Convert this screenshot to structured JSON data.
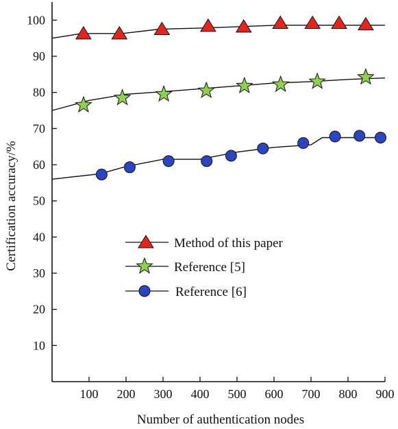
{
  "chart_data": {
    "type": "line",
    "xlabel": "Number of authentication nodes",
    "ylabel": "Certification accuracy/%",
    "xlim": [
      0,
      900
    ],
    "ylim": [
      0,
      105
    ],
    "xticks": [
      100,
      200,
      300,
      400,
      500,
      600,
      700,
      800,
      900
    ],
    "yticks": [
      10,
      20,
      30,
      40,
      50,
      60,
      70,
      80,
      90,
      100
    ],
    "grid": false,
    "legend_position": "center",
    "series": [
      {
        "name": "Method of this paper",
        "marker": "triangle",
        "color": "#e3261d",
        "line": [
          [
            0,
            95
          ],
          [
            80,
            96.3
          ],
          [
            190,
            96.3
          ],
          [
            290,
            97.5
          ],
          [
            400,
            97.8
          ],
          [
            510,
            98.2
          ],
          [
            610,
            98.6
          ],
          [
            700,
            98.6
          ],
          [
            780,
            98.6
          ],
          [
            900,
            98.6
          ]
        ],
        "points": [
          [
            85,
            96.3
          ],
          [
            182,
            96.3
          ],
          [
            297,
            97.5
          ],
          [
            422,
            98.4
          ],
          [
            518,
            98.2
          ],
          [
            617,
            99.2
          ],
          [
            704,
            99.2
          ],
          [
            776,
            99.2
          ],
          [
            848,
            98.8
          ]
        ]
      },
      {
        "name": "Reference [5]",
        "marker": "star",
        "color": "#8fd14f",
        "line": [
          [
            0,
            75
          ],
          [
            100,
            77.8
          ],
          [
            200,
            79.5
          ],
          [
            300,
            80.2
          ],
          [
            400,
            81.0
          ],
          [
            500,
            81.8
          ],
          [
            600,
            82.6
          ],
          [
            700,
            83.0
          ],
          [
            800,
            83.6
          ],
          [
            900,
            84.0
          ]
        ],
        "points": [
          [
            85,
            76.5
          ],
          [
            190,
            78.5
          ],
          [
            302,
            79.5
          ],
          [
            417,
            80.5
          ],
          [
            520,
            81.8
          ],
          [
            618,
            82.2
          ],
          [
            717,
            83.0
          ],
          [
            848,
            84.2
          ]
        ]
      },
      {
        "name": "Reference [6]",
        "marker": "circle",
        "color": "#2b45c0",
        "line": [
          [
            0,
            56
          ],
          [
            130,
            57.5
          ],
          [
            200,
            59.5
          ],
          [
            300,
            61.5
          ],
          [
            400,
            61.5
          ],
          [
            500,
            63.5
          ],
          [
            600,
            64.8
          ],
          [
            700,
            65.5
          ],
          [
            730,
            67.5
          ],
          [
            900,
            67.5
          ]
        ],
        "points": [
          [
            134,
            57.3
          ],
          [
            210,
            59.3
          ],
          [
            315,
            61.0
          ],
          [
            418,
            61.0
          ],
          [
            484,
            62.5
          ],
          [
            570,
            64.5
          ],
          [
            679,
            66.0
          ],
          [
            765,
            67.8
          ],
          [
            831,
            68.0
          ],
          [
            888,
            67.5
          ]
        ]
      }
    ]
  }
}
